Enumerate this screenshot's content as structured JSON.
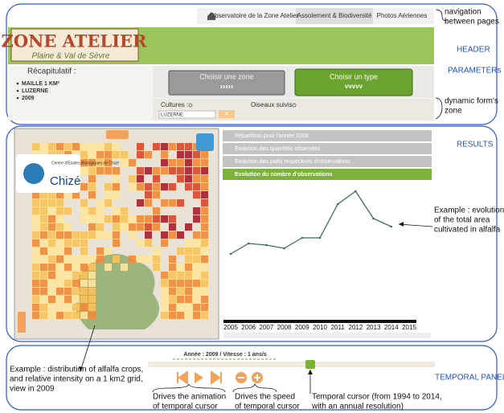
{
  "navigation": {
    "items": [
      "Observatoire de la Zone Atelier",
      "Assolement & Biodiversité",
      "Photos Aériennes"
    ]
  },
  "header": {
    "title": "ZONE ATELIER",
    "subtitle": "Plaine & Val de Sèvre"
  },
  "parameters": {
    "summary_title": "Récapitulatif :",
    "summary_items": [
      "MAILLE 1 KM²",
      "LUZERNE",
      "2009"
    ],
    "button_zone": "Choisir une zone",
    "button_type": "Choisir un type",
    "field_crops": "Cultures :",
    "field_birds": "Oiseaux suivis :",
    "input_value": "LUZERNE"
  },
  "map": {
    "logo_small": "Centre d'Études Biologiques de Chizé",
    "logo_big": "Chizé"
  },
  "results": {
    "accordion": [
      "Répartition pour l'année 2008",
      "Evolution des quantités observées",
      "Evolution des parts respectives d'observations",
      "Evolution du nombre d'observations"
    ],
    "chart_data": {
      "type": "line",
      "categories": [
        "2005",
        "2006",
        "2007",
        "2008",
        "2009",
        "2010",
        "2011",
        "2012",
        "2013",
        "2014",
        "2015"
      ],
      "values": [
        84,
        97,
        95,
        91,
        104,
        104,
        146,
        162,
        128,
        118,
        null
      ],
      "color": "#3d6b5a"
    }
  },
  "temporal": {
    "status": "Année : 2009 / Vitesse : 1 ans/s"
  },
  "annotations": {
    "navigation": [
      "navigation",
      "between pages"
    ],
    "header": [
      "HEADER"
    ],
    "parameters": [
      "PARAMETERs"
    ],
    "form": [
      "dynamic form's",
      "zone"
    ],
    "results": [
      "RESULTS"
    ],
    "temporal": [
      "TEMPORAL PANEL"
    ],
    "chart": [
      "Example : evolution",
      "of the total area",
      "cultivated in alfalfa"
    ],
    "map": [
      "Example : distribution of alfalfa crops,",
      "and relative intensity on a 1 km2 grid,",
      "view in 2009"
    ],
    "animation": [
      "Drives the animation",
      "of temporal cursor"
    ],
    "speed": [
      "Drives the speed",
      "of temporal cursor"
    ],
    "cursor": [
      "Temporal cursor (from 1994 to 2014,",
      "with an annual resolution)"
    ]
  }
}
